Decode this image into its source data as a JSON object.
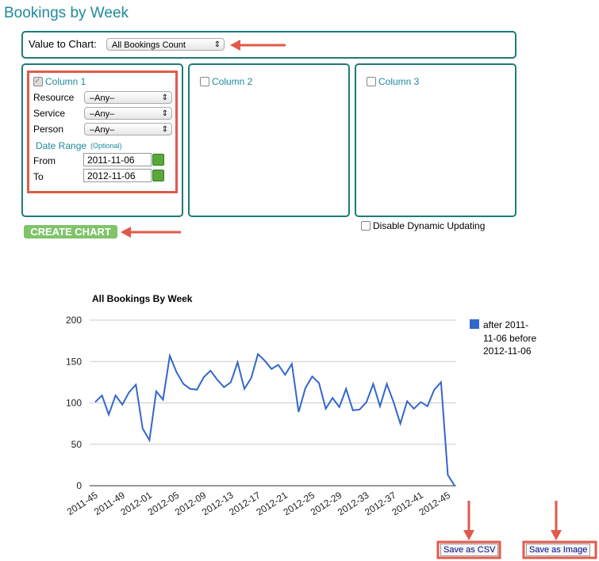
{
  "header": {
    "title": "Bookings by Week"
  },
  "value_to_chart": {
    "label": "Value to Chart:",
    "selected": "All Bookings Count"
  },
  "columns": [
    {
      "label": "Column 1",
      "fields": [
        {
          "label": "Resource",
          "value": "–Any–"
        },
        {
          "label": "Service",
          "value": "–Any–"
        },
        {
          "label": "Person",
          "value": "–Any–"
        }
      ],
      "date_range": {
        "label": "Date Range",
        "note": "(Optional)",
        "from_label": "From",
        "from": "2011-11-06",
        "to_label": "To",
        "to": "2012-11-06"
      }
    },
    {
      "label": "Column 2"
    },
    {
      "label": "Column 3"
    }
  ],
  "disable_dynamic": {
    "label": "Disable Dynamic Updating"
  },
  "create_button": {
    "label": "CREATE CHART"
  },
  "chart_data": {
    "type": "line",
    "title": "All Bookings By Week",
    "categories": [
      "2011-45",
      null,
      null,
      null,
      "2011-49",
      null,
      null,
      null,
      "2012-01",
      null,
      null,
      null,
      "2012-05",
      null,
      null,
      null,
      "2012-09",
      null,
      null,
      null,
      "2012-13",
      null,
      null,
      null,
      "2012-17",
      null,
      null,
      null,
      "2012-21",
      null,
      null,
      null,
      "2012-25",
      null,
      null,
      null,
      "2012-29",
      null,
      null,
      null,
      "2012-33",
      null,
      null,
      null,
      "2012-37",
      null,
      null,
      null,
      "2012-41",
      null,
      null,
      null,
      "2012-45",
      null
    ],
    "series": [
      {
        "name": "after 2011-11-06 before 2012-11-06",
        "color": "#3366cc",
        "values": [
          101,
          109,
          86,
          109,
          98,
          113,
          122,
          69,
          55,
          114,
          104,
          157,
          137,
          123,
          117,
          116,
          131,
          139,
          128,
          119,
          125,
          149,
          117,
          130,
          159,
          151,
          141,
          146,
          134,
          147,
          89,
          118,
          132,
          124,
          93,
          106,
          95,
          117,
          91,
          92,
          101,
          123,
          96,
          123,
          101,
          75,
          102,
          93,
          101,
          96,
          116,
          125,
          13,
          0
        ]
      }
    ],
    "ylim": [
      0,
      200
    ],
    "yticks": [
      0,
      50,
      100,
      150,
      200
    ],
    "grid": true,
    "legend": "right"
  },
  "buttons": {
    "csv": "Save as CSV",
    "image": "Save as Image"
  }
}
